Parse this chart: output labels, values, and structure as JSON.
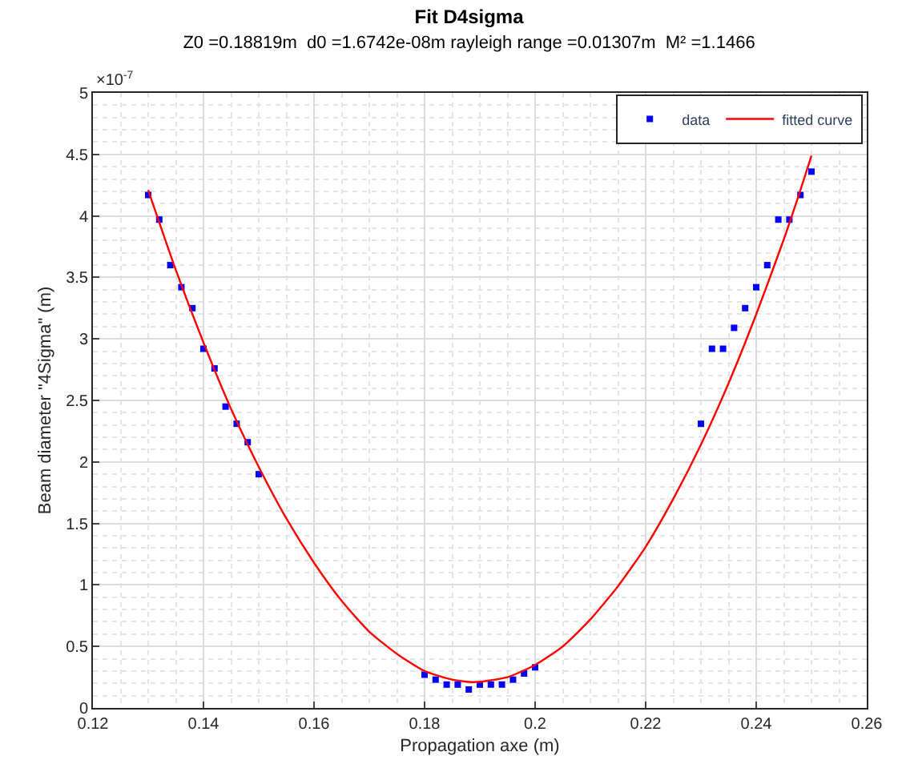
{
  "chart_data": {
    "type": "scatter",
    "title": "Fit D4sigma",
    "subtitle": "Z0 =0.18819m  d0 =1.6742e-08m rayleigh range =0.01307m  M² =1.1466",
    "xlabel": "Propagation axe (m)",
    "ylabel": "Beam diameter \"4Sigma\" (m)",
    "annotations": [
      "×10$^{-7}$"
    ],
    "xlim": [
      0.12,
      0.26
    ],
    "xticks": [
      0.12,
      0.14,
      0.16,
      0.18,
      0.2,
      0.22,
      0.24,
      0.26
    ],
    "ylim": [
      0,
      5
    ],
    "yticks": [
      0,
      0.5,
      1,
      1.5,
      2,
      2.5,
      3,
      3.5,
      4,
      4.5,
      5
    ],
    "grid": true,
    "legend": "top right",
    "series": [
      {
        "name": "data",
        "marker": "square",
        "color": "#0000ff",
        "x": [
          0.13,
          0.132,
          0.134,
          0.136,
          0.138,
          0.14,
          0.142,
          0.144,
          0.146,
          0.148,
          0.15,
          0.18,
          0.182,
          0.184,
          0.186,
          0.188,
          0.19,
          0.192,
          0.194,
          0.196,
          0.198,
          0.2,
          0.23,
          0.232,
          0.234,
          0.236,
          0.238,
          0.24,
          0.242,
          0.244,
          0.246,
          0.248,
          0.25
        ],
        "values": [
          4.17,
          3.97,
          3.6,
          3.42,
          3.25,
          2.92,
          2.76,
          2.45,
          2.31,
          2.16,
          1.9,
          0.27,
          0.23,
          0.19,
          0.19,
          0.15,
          0.19,
          0.19,
          0.19,
          0.23,
          0.28,
          0.33,
          2.31,
          2.92,
          2.92,
          3.09,
          3.25,
          3.42,
          3.6,
          3.97,
          3.97,
          4.17,
          4.36
        ]
      },
      {
        "name": "fitted curve",
        "type": "line",
        "marker": "none",
        "line_style": "solid",
        "color": "#ff0000",
        "x": [
          0.13,
          0.135,
          0.14,
          0.145,
          0.15,
          0.155,
          0.16,
          0.165,
          0.17,
          0.175,
          0.18,
          0.185,
          0.189,
          0.195,
          0.2,
          0.205,
          0.21,
          0.215,
          0.22,
          0.225,
          0.23,
          0.235,
          0.24,
          0.245,
          0.248,
          0.25
        ],
        "values": [
          4.21,
          3.56,
          2.97,
          2.43,
          1.96,
          1.54,
          1.18,
          0.87,
          0.62,
          0.44,
          0.3,
          0.23,
          0.21,
          0.25,
          0.35,
          0.5,
          0.72,
          0.99,
          1.31,
          1.7,
          2.14,
          2.64,
          3.2,
          3.81,
          4.21,
          4.49
        ]
      }
    ]
  }
}
